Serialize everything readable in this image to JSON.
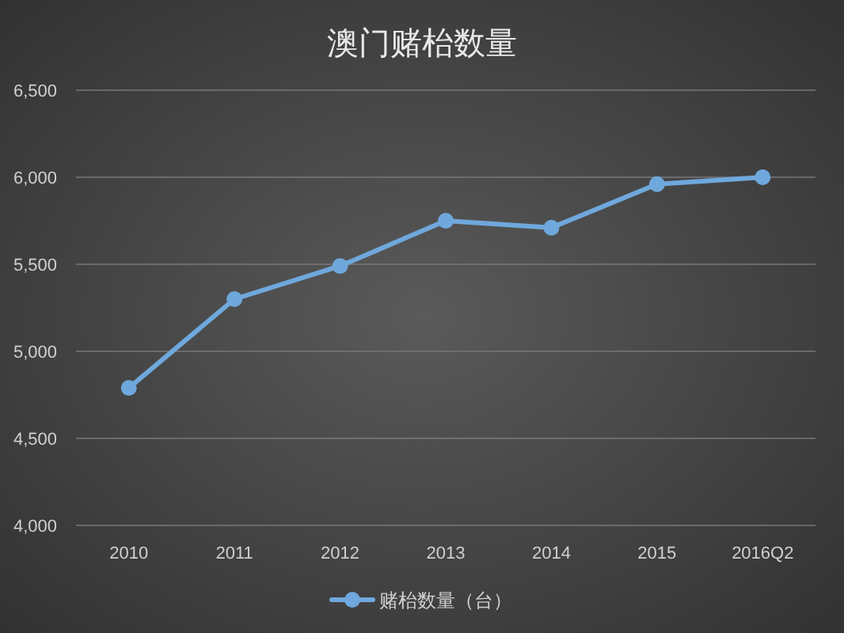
{
  "chart_data": {
    "type": "line",
    "title": "澳门赌枱数量",
    "categories": [
      "2010",
      "2011",
      "2012",
      "2013",
      "2014",
      "2015",
      "2016Q2"
    ],
    "series": [
      {
        "name": "赌枱数量（台）",
        "color": "#6fa8dc",
        "values": [
          4790,
          5300,
          5490,
          5750,
          5710,
          5960,
          6000
        ]
      }
    ],
    "ylim": [
      4000,
      6500
    ],
    "yticks": [
      {
        "value": 4000,
        "label": "4,000"
      },
      {
        "value": 4500,
        "label": "4,500"
      },
      {
        "value": 5000,
        "label": "5,000"
      },
      {
        "value": 5500,
        "label": "5,500"
      },
      {
        "value": 6000,
        "label": "6,000"
      },
      {
        "value": 6500,
        "label": "6,500"
      }
    ],
    "grid": "y",
    "legend": "bottom",
    "marker": "circle",
    "line_style": "solid"
  }
}
